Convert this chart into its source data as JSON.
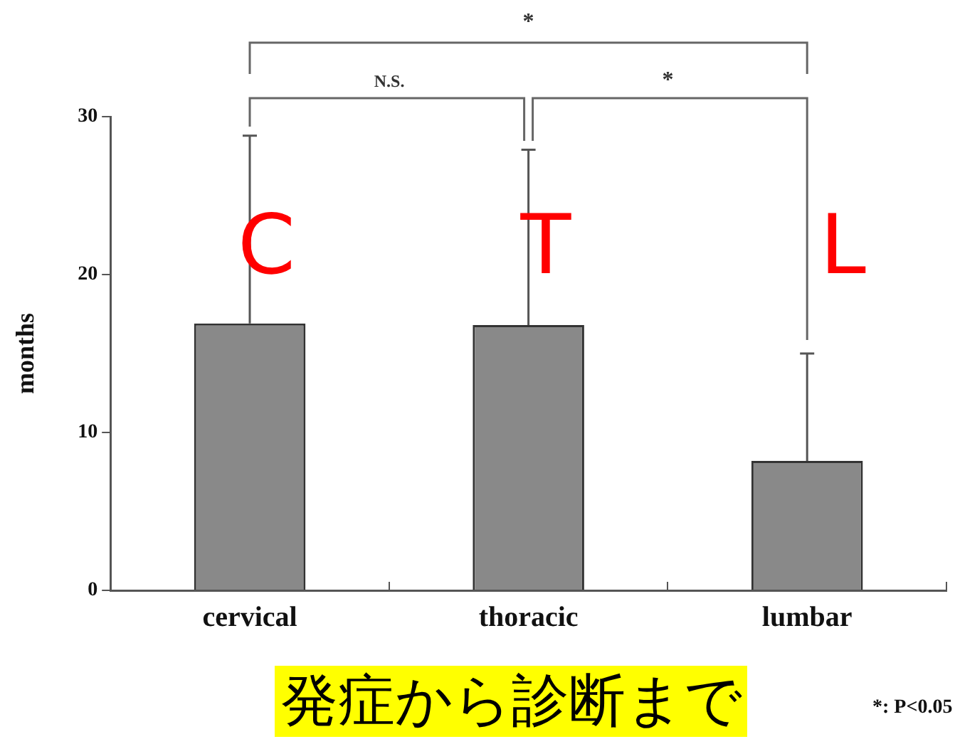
{
  "chart_data": {
    "type": "bar",
    "ylabel": "months",
    "categories": [
      "cervical",
      "thoracic",
      "lumbar"
    ],
    "values": [
      16.9,
      16.8,
      8.2
    ],
    "color": "#898989",
    "errors": [
      [
        16.9,
        28.8
      ],
      [
        16.8,
        27.9
      ],
      [
        8.2,
        15.0
      ]
    ],
    "ylim": [
      0,
      30
    ],
    "yticks": [
      0,
      10,
      20,
      30
    ],
    "grid": false,
    "legend": false,
    "annotations": [
      "*",
      "N.S.",
      "*",
      "C",
      "T",
      "L",
      "発症から診断まで",
      "*: P<0.05"
    ]
  }
}
